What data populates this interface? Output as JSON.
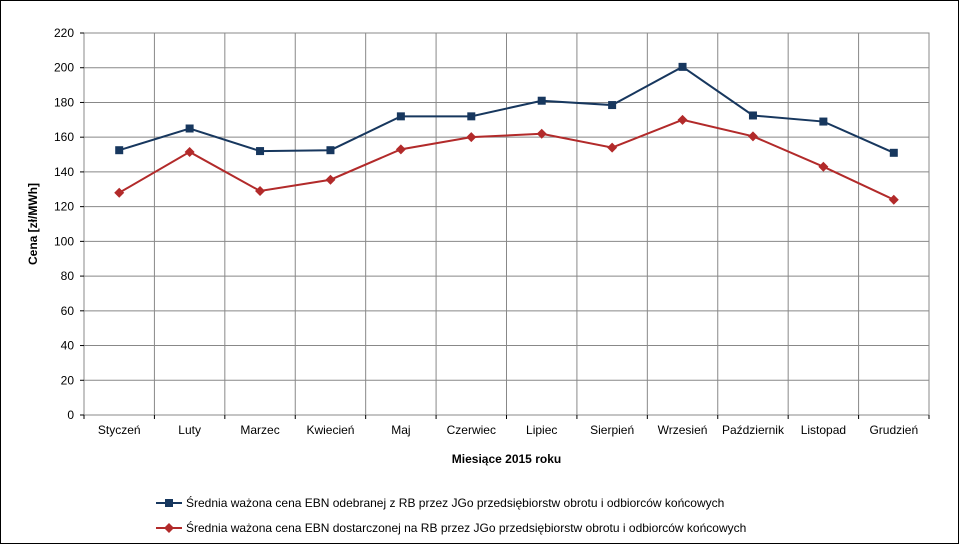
{
  "chart_data": {
    "type": "line",
    "categories": [
      "Styczeń",
      "Luty",
      "Marzec",
      "Kwiecień",
      "Maj",
      "Czerwiec",
      "Lipiec",
      "Sierpień",
      "Wrzesień",
      "Październik",
      "Listopad",
      "Grudzień"
    ],
    "series": [
      {
        "name": "Średnia ważona cena EBN odebranej z RB przez JGo przedsiębiorstw obrotu i odbiorców końcowych",
        "color": "#17375e",
        "marker": "square",
        "values": [
          152.5,
          165,
          152,
          152.5,
          172,
          172,
          181,
          178.5,
          200.5,
          172.5,
          169,
          151
        ]
      },
      {
        "name": "Średnia ważona cena EBN dostarczonej na RB przez JGo przedsiębiorstw obrotu i odbiorców końcowych",
        "color": "#b22a2a",
        "marker": "diamond",
        "values": [
          128,
          151.5,
          129,
          135.5,
          153,
          160,
          162,
          154,
          170,
          160.5,
          143,
          124
        ]
      }
    ],
    "xlabel": "Miesiące 2015  roku",
    "ylabel": "Cena [zł/MWh]",
    "ylim": [
      0,
      220
    ],
    "yticks": [
      0,
      20,
      40,
      60,
      80,
      100,
      120,
      140,
      160,
      180,
      200,
      220
    ],
    "grid": true,
    "legend": "bottom"
  }
}
